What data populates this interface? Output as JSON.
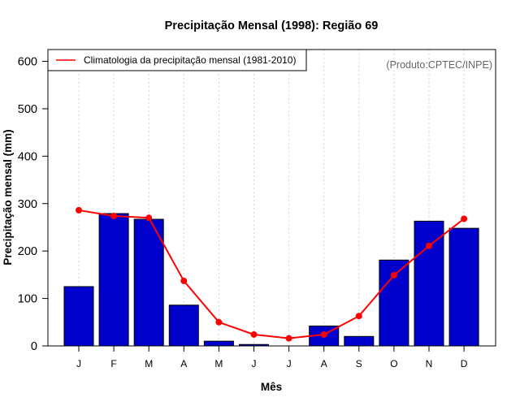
{
  "chart_data": {
    "type": "bar",
    "title": "Precipitação Mensal (1998): Região 69",
    "xlabel": "Mês",
    "ylabel": "Precipitação mensal (mm)",
    "ylim": [
      0,
      600
    ],
    "yticks": [
      0,
      100,
      200,
      300,
      400,
      500,
      600
    ],
    "categories": [
      "J",
      "F",
      "M",
      "A",
      "M",
      "J",
      "J",
      "A",
      "S",
      "O",
      "N",
      "D"
    ],
    "grid": "vertical dotted at each month",
    "series": [
      {
        "name": "Precipitação mensal (1998)",
        "type": "bar",
        "color": "#0000cc",
        "values": [
          125,
          279,
          267,
          86,
          10,
          3,
          0,
          42,
          20,
          181,
          263,
          248
        ]
      },
      {
        "name": "Climatologia da precipitação mensal (1981-2010)",
        "type": "line",
        "color": "#ff0000",
        "values": [
          286,
          274,
          270,
          137,
          50,
          24,
          16,
          24,
          63,
          149,
          211,
          268
        ]
      }
    ],
    "legend": {
      "position": "top-left",
      "entries": [
        "Climatologia da precipitação mensal (1981-2010)"
      ]
    },
    "annotation": "(Produto:CPTEC/INPE)"
  }
}
